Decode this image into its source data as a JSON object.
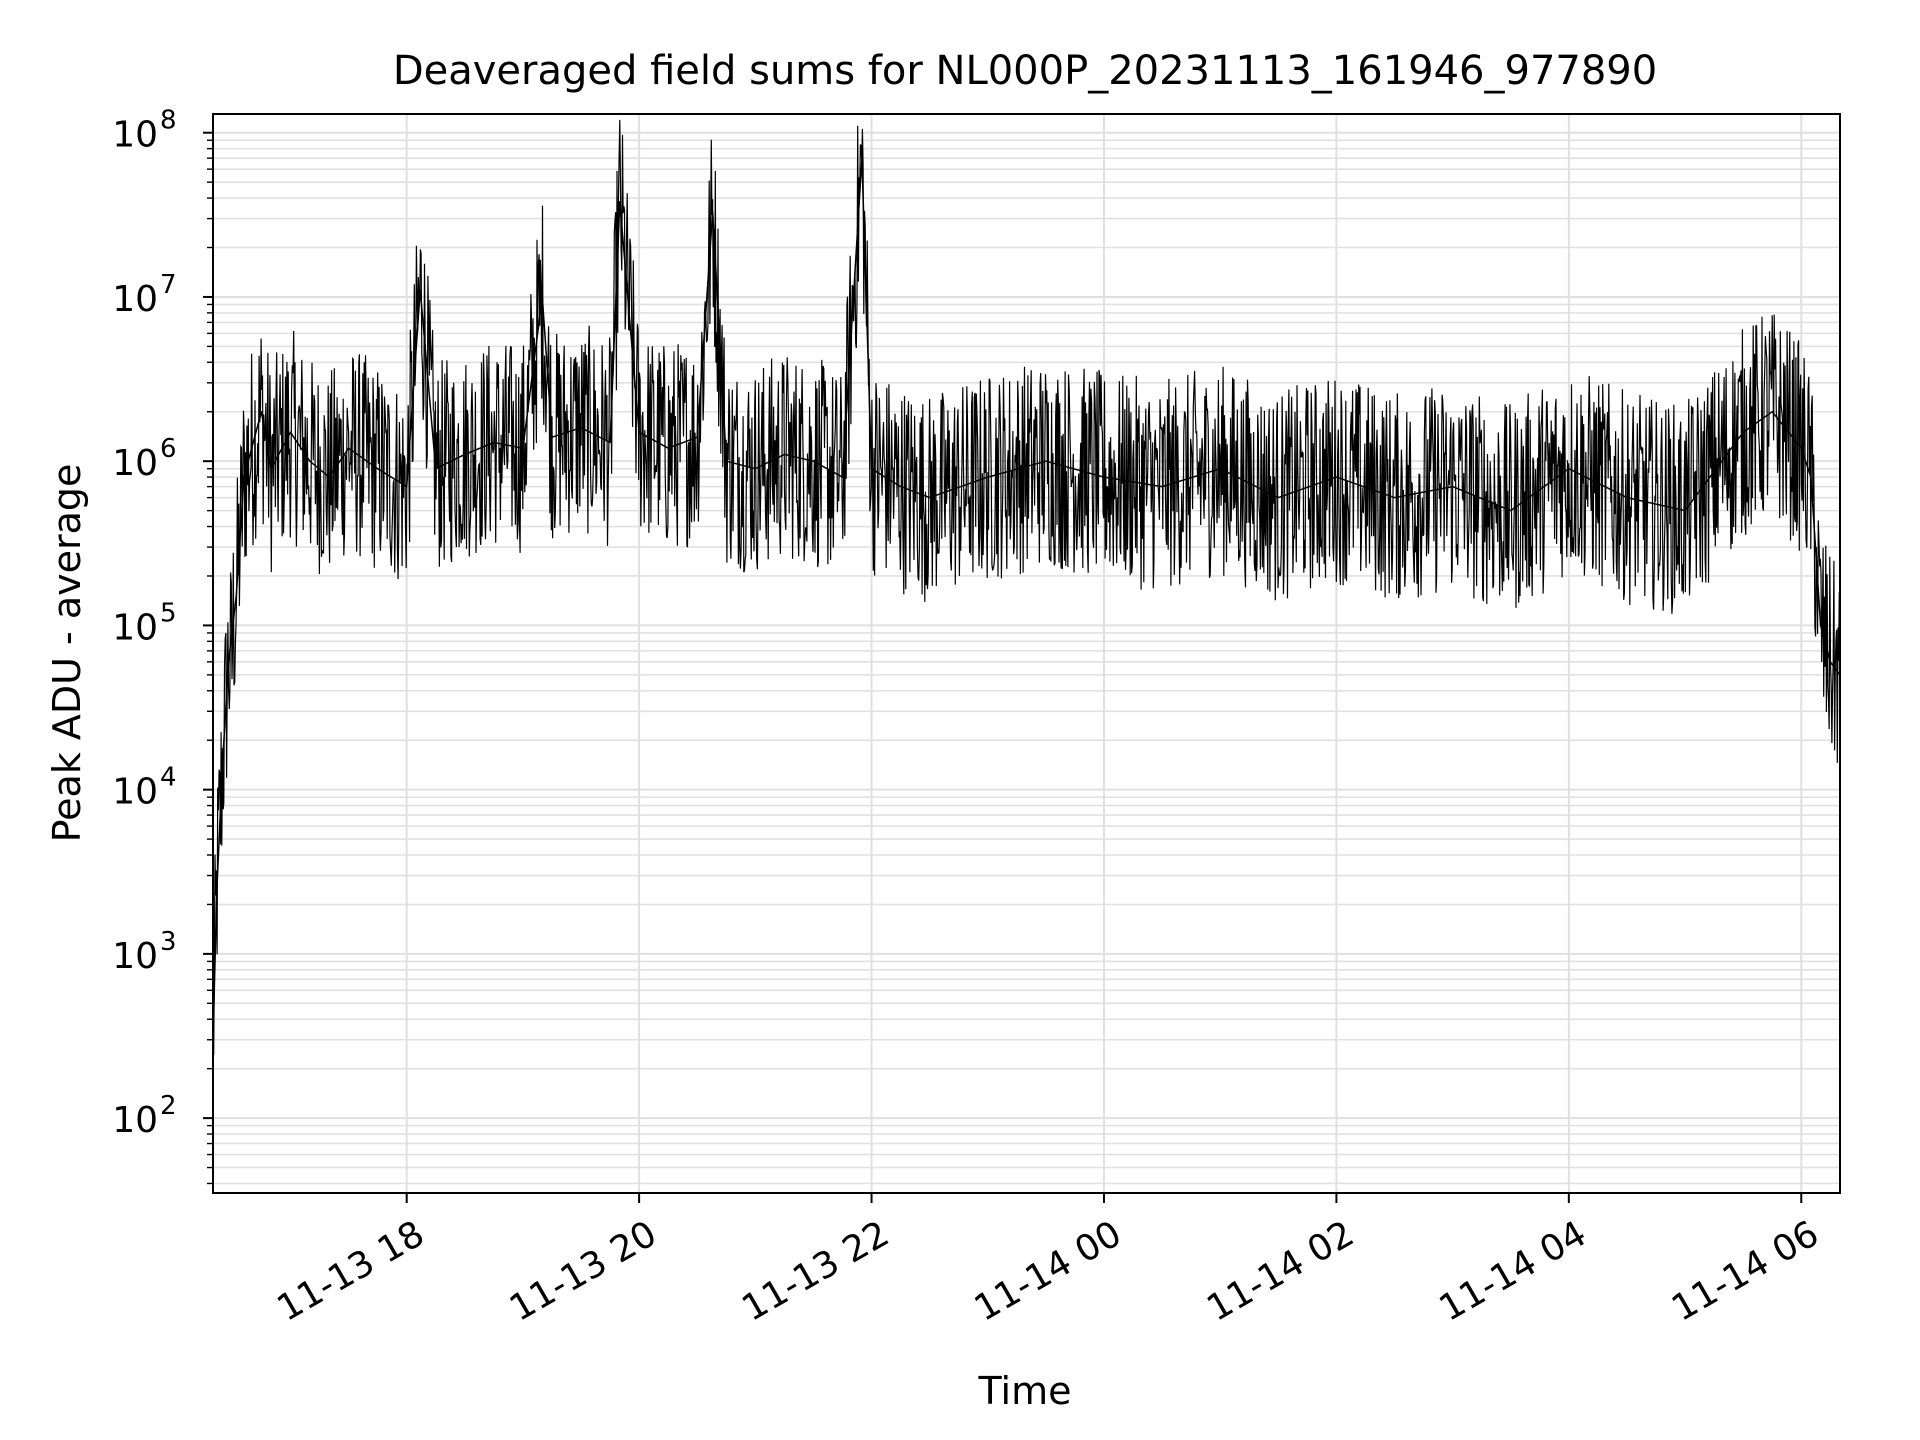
{
  "chart_data": {
    "type": "line",
    "title": "Deaveraged field sums for NL000P_20231113_161946_977890",
    "xlabel": "Time",
    "ylabel": "Peak ADU - average",
    "y_scale": "log",
    "ylim": [
      35,
      130000000
    ],
    "xlim": [
      "2023-11-13 16:20",
      "2023-11-14 06:20"
    ],
    "x_ticks": [
      "11-13 18",
      "11-13 20",
      "11-13 22",
      "11-14 00",
      "11-14 02",
      "11-14 04",
      "11-14 06"
    ],
    "y_ticks": [
      {
        "base": "10",
        "exp": "2"
      },
      {
        "base": "10",
        "exp": "3"
      },
      {
        "base": "10",
        "exp": "4"
      },
      {
        "base": "10",
        "exp": "5"
      },
      {
        "base": "10",
        "exp": "6"
      },
      {
        "base": "10",
        "exp": "7"
      },
      {
        "base": "10",
        "exp": "8"
      }
    ],
    "grid": true,
    "line_color": "#000000",
    "grid_color": "#e0e0e0",
    "series": [
      {
        "name": "",
        "x": [
          "2023-11-13 16:20",
          "2023-11-13 16:22",
          "2023-11-13 16:25",
          "2023-11-13 16:28",
          "2023-11-13 16:32",
          "2023-11-13 16:36",
          "2023-11-13 16:40",
          "2023-11-13 16:45",
          "2023-11-13 16:50",
          "2023-11-13 17:00",
          "2023-11-13 17:10",
          "2023-11-13 17:20",
          "2023-11-13 17:30",
          "2023-11-13 17:45",
          "2023-11-13 18:00",
          "2023-11-13 18:07",
          "2023-11-13 18:15",
          "2023-11-13 18:30",
          "2023-11-13 18:45",
          "2023-11-13 19:00",
          "2023-11-13 19:10",
          "2023-11-13 19:15",
          "2023-11-13 19:30",
          "2023-11-13 19:45",
          "2023-11-13 19:50",
          "2023-11-13 20:00",
          "2023-11-13 20:15",
          "2023-11-13 20:30",
          "2023-11-13 20:38",
          "2023-11-13 20:45",
          "2023-11-13 21:00",
          "2023-11-13 21:15",
          "2023-11-13 21:30",
          "2023-11-13 21:45",
          "2023-11-13 21:55",
          "2023-11-13 22:00",
          "2023-11-13 22:15",
          "2023-11-13 22:30",
          "2023-11-13 23:00",
          "2023-11-13 23:30",
          "2023-11-14 00:00",
          "2023-11-14 00:30",
          "2023-11-14 01:00",
          "2023-11-14 01:30",
          "2023-11-14 02:00",
          "2023-11-14 02:30",
          "2023-11-14 03:00",
          "2023-11-14 03:30",
          "2023-11-14 04:00",
          "2023-11-14 04:30",
          "2023-11-14 05:00",
          "2023-11-14 05:30",
          "2023-11-14 05:45",
          "2023-11-14 06:00",
          "2023-11-14 06:05",
          "2023-11-14 06:10",
          "2023-11-14 06:15",
          "2023-11-14 06:20"
        ],
        "y": [
          300,
          2500,
          15000,
          60000,
          150000,
          800000,
          1200000,
          2000000,
          900000,
          1500000,
          1000000,
          800000,
          1200000,
          900000,
          700000,
          11000000,
          900000,
          1100000,
          1300000,
          1200000,
          10000000,
          1400000,
          1600000,
          1300000,
          38000000,
          1500000,
          1200000,
          1400000,
          33000000,
          1000000,
          900000,
          1100000,
          1000000,
          800000,
          70000000,
          900000,
          700000,
          600000,
          800000,
          1000000,
          800000,
          700000,
          900000,
          600000,
          800000,
          600000,
          700000,
          500000,
          900000,
          600000,
          500000,
          1500000,
          2000000,
          1200000,
          800000,
          100000,
          60000,
          50000
        ]
      }
    ]
  }
}
